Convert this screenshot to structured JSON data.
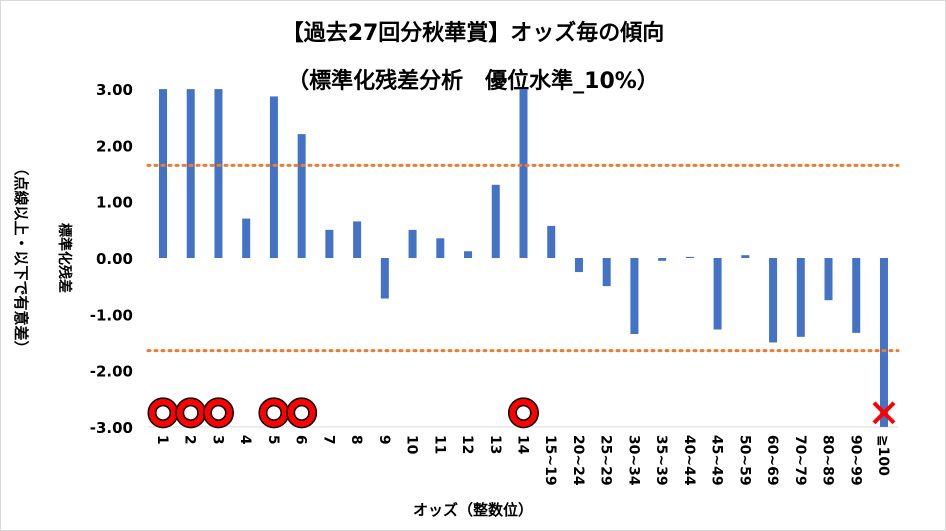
{
  "chart_data": {
    "type": "bar",
    "title": "【過去27回分秋華賞】オッズ毎の傾向",
    "subtitle": "（標準化残差分析　優位水準_10%）",
    "xlabel": "オッズ（整数位）",
    "ylabel": "標準化残差",
    "ylabel2": "（点線以上・以下で有意差）",
    "ylim": [
      -3,
      3
    ],
    "yticks": [
      "3.00",
      "2.00",
      "1.00",
      "0.00",
      "-1.00",
      "-2.00",
      "-3.00"
    ],
    "ytick_values": [
      3,
      2,
      1,
      0,
      -1,
      -2,
      -3
    ],
    "categories": [
      "1",
      "2",
      "3",
      "4",
      "5",
      "6",
      "7",
      "8",
      "9",
      "10",
      "11",
      "12",
      "13",
      "14",
      "15~19",
      "20~24",
      "25~29",
      "30~34",
      "35~39",
      "40~44",
      "45~49",
      "50~59",
      "60~69",
      "70~79",
      "80~89",
      "90~99",
      "≧100"
    ],
    "values": [
      3.0,
      3.0,
      3.0,
      0.7,
      2.87,
      2.2,
      0.5,
      0.65,
      -0.72,
      0.5,
      0.35,
      0.12,
      1.3,
      3.0,
      0.57,
      -0.25,
      -0.5,
      -1.35,
      -0.05,
      0.02,
      -1.27,
      0.05,
      -1.5,
      -1.4,
      -0.75,
      -1.33,
      -3.0
    ],
    "threshold_lines": [
      1.645,
      -1.645
    ],
    "markers": {
      "circle": [
        "1",
        "2",
        "3",
        "5",
        "6",
        "14"
      ],
      "cross": [
        "≧100"
      ],
      "y": -2.75
    },
    "colors": {
      "bar": "#4472c4",
      "threshold": "#ed7d31",
      "circle": "#ff0000",
      "cross": "#ff0000"
    },
    "grid": false,
    "legend": "none"
  }
}
